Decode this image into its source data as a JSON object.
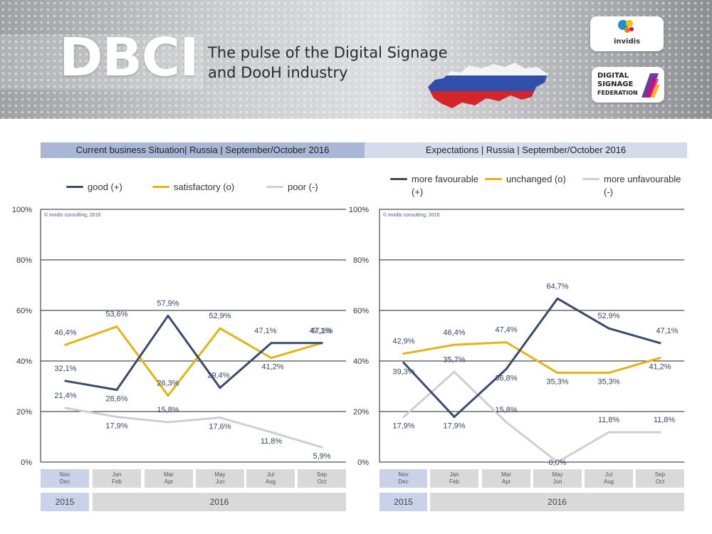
{
  "banner": {
    "logo_text": "DBCI",
    "tagline_line1": "The pulse of the Digital Signage",
    "tagline_line2": "and DooH industry",
    "invidis_logo": "invidis",
    "dsf_logo_line1": "DIGITAL",
    "dsf_logo_line2": "SIGNAGE",
    "dsf_logo_line3": "FEDERATION"
  },
  "colors": {
    "good": "#3c4a6b",
    "satisfactory": "#e2b414",
    "poor": "#cfcfcf",
    "axis_text": "#333333",
    "grid": "#222222"
  },
  "chart_data": [
    {
      "type": "line",
      "title": "Current business Situation| Russia | September/October  2016",
      "watermark": "© invidis consulting, 2016",
      "categories": [
        [
          "Nov",
          "Dec"
        ],
        [
          "Jan",
          "Feb"
        ],
        [
          "Mar",
          "Apr"
        ],
        [
          "May",
          "Jun"
        ],
        [
          "Jul",
          "Aug"
        ],
        [
          "Sep",
          "Oct"
        ]
      ],
      "years": [
        {
          "label": "2015",
          "span": 1
        },
        {
          "label": "2016",
          "span": 5
        }
      ],
      "ylim": [
        0,
        100
      ],
      "yticks": [
        "0%",
        "20%",
        "40%",
        "60%",
        "80%",
        "100%"
      ],
      "series": [
        {
          "name": "good (+)",
          "color": "#3c4a6b",
          "values": [
            32.1,
            28.6,
            57.9,
            29.4,
            47.1,
            47.1
          ],
          "labels": [
            "32,1%",
            "28,6%",
            "57,9%",
            "29,4%",
            "47,1%",
            "47,1%"
          ]
        },
        {
          "name": "satisfactory (o)",
          "color": "#e2b414",
          "values": [
            46.4,
            53.6,
            26.3,
            52.9,
            41.2,
            47.1
          ],
          "labels": [
            "46,4%",
            "53,6%",
            "26,3%",
            "52,9%",
            "41,2%",
            "47,1%"
          ]
        },
        {
          "name": "poor (-)",
          "color": "#cfcfcf",
          "values": [
            21.4,
            17.9,
            15.8,
            17.6,
            11.8,
            5.9
          ],
          "labels": [
            "21,4%",
            "17,9%",
            "15,8%",
            "17,6%",
            "11,8%",
            "5,9%"
          ]
        }
      ]
    },
    {
      "type": "line",
      "title": "Expectations | Russia | September/October  2016",
      "watermark": "© invidis consulting, 2016",
      "categories": [
        [
          "Nov",
          "Dec"
        ],
        [
          "Jan",
          "Feb"
        ],
        [
          "Mar",
          "Apr"
        ],
        [
          "May",
          "Jun"
        ],
        [
          "Jul",
          "Aug"
        ],
        [
          "Sep",
          "Oct"
        ]
      ],
      "years": [
        {
          "label": "2015",
          "span": 1
        },
        {
          "label": "2016",
          "span": 5
        }
      ],
      "ylim": [
        0,
        100
      ],
      "yticks": [
        "0%",
        "20%",
        "40%",
        "60%",
        "80%",
        "100%"
      ],
      "series": [
        {
          "name": "more favourable (+)",
          "color": "#3c4a6b",
          "values": [
            39.3,
            17.9,
            36.8,
            64.7,
            52.9,
            47.1
          ],
          "labels": [
            "39,3%",
            "17,9%",
            "36,8%",
            "64,7%",
            "52,9%",
            "47,1%"
          ]
        },
        {
          "name": "unchanged (o)",
          "color": "#e2b414",
          "values": [
            42.9,
            46.4,
            47.4,
            35.3,
            35.3,
            41.2
          ],
          "labels": [
            "42,9%",
            "46,4%",
            "47,4%",
            "35,3%",
            "35,3%",
            "41,2%"
          ]
        },
        {
          "name": "more unfavourable (-)",
          "color": "#cfcfcf",
          "values": [
            17.9,
            35.7,
            15.8,
            0.0,
            11.8,
            11.8
          ],
          "labels": [
            "17,9%",
            "35,7%",
            "15,8%",
            "0,0%",
            "11,8%",
            "11,8%"
          ]
        }
      ]
    }
  ]
}
